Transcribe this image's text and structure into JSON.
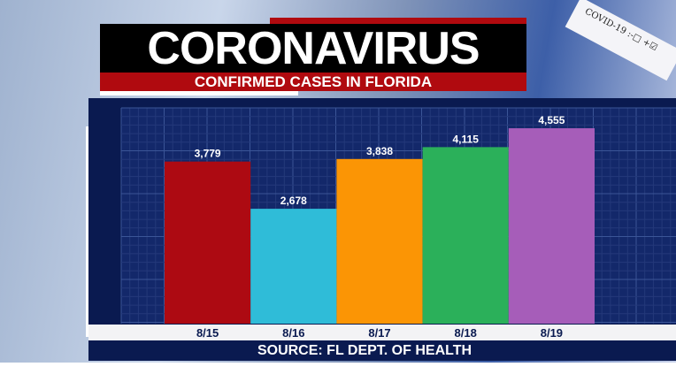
{
  "header": {
    "title": "CORONAVIRUS",
    "subtitle": "CONFIRMED CASES IN FLORIDA",
    "tube_label": "COVID-19 :-□ +☑"
  },
  "footer": {
    "source": "SOURCE: FL DEPT. OF HEALTH"
  },
  "colors": {
    "panel": "#0a1a50",
    "title_bg": "#000000",
    "subtitle_bg": "#b00a0f"
  },
  "chart_data": {
    "type": "bar",
    "title": "CONFIRMED CASES IN FLORIDA",
    "categories": [
      "8/15",
      "8/16",
      "8/17",
      "8/18",
      "8/19"
    ],
    "values": [
      3779,
      2678,
      3838,
      4115,
      4555
    ],
    "labels": [
      "3,779",
      "2,678",
      "3,838",
      "4,115",
      "4,555"
    ],
    "colors": [
      "#ad0a12",
      "#2fbcd8",
      "#fb9505",
      "#2bb05a",
      "#a65db9"
    ],
    "ylim": [
      0,
      5030
    ],
    "grid": true,
    "xlabel": "",
    "ylabel": ""
  }
}
